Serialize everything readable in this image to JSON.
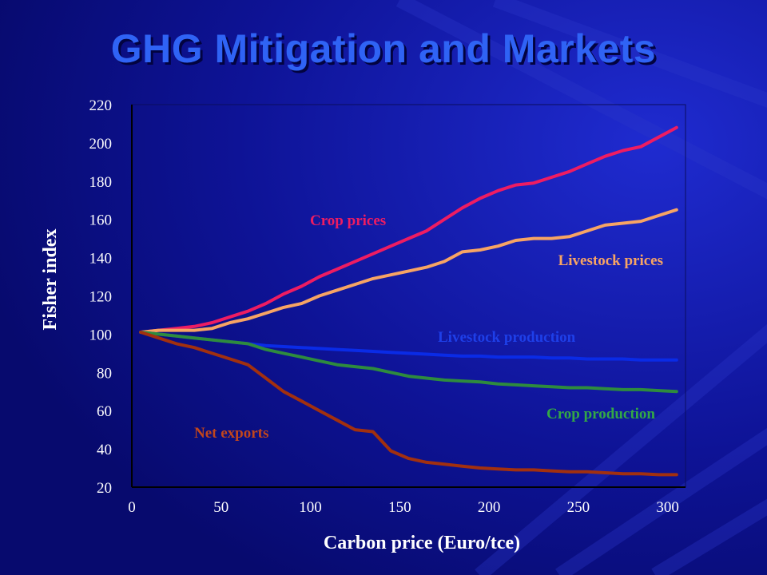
{
  "slide": {
    "title": "GHG Mitigation and Markets",
    "background_color": "#0b0f8a",
    "title_color": "#2f63f5"
  },
  "chart_data": {
    "type": "line",
    "title": "",
    "xlabel": "Carbon price (Euro/tce)",
    "ylabel": "Fisher index",
    "xlim": [
      0,
      310
    ],
    "ylim": [
      20,
      220
    ],
    "xticks": [
      "0",
      "50",
      "100",
      "150",
      "200",
      "250",
      "300"
    ],
    "yticks": [
      "20",
      "40",
      "60",
      "80",
      "100",
      "120",
      "140",
      "160",
      "180",
      "200",
      "220"
    ],
    "grid": false,
    "x": [
      5,
      15,
      25,
      35,
      45,
      55,
      65,
      75,
      85,
      95,
      105,
      115,
      125,
      135,
      145,
      155,
      165,
      175,
      185,
      195,
      205,
      215,
      225,
      235,
      245,
      255,
      265,
      275,
      285,
      295,
      305
    ],
    "series": [
      {
        "name": "Crop prices",
        "color": "#ee1c62",
        "label_color": "#ee1c62",
        "values": [
          101,
          102,
          103,
          104,
          106,
          109,
          112,
          116,
          121,
          125,
          130,
          134,
          138,
          142,
          146,
          150,
          154,
          160,
          166,
          171,
          175,
          178,
          179,
          182,
          185,
          189,
          193,
          196,
          198,
          203,
          208
        ]
      },
      {
        "name": "Livestock prices",
        "color": "#f7a464",
        "label_color": "#f7a464",
        "values": [
          101,
          102,
          102,
          102,
          103,
          106,
          108,
          111,
          114,
          116,
          120,
          123,
          126,
          129,
          131,
          133,
          135,
          138,
          143,
          144,
          146,
          149,
          150,
          150,
          151,
          154,
          157,
          158,
          159,
          162,
          165
        ]
      },
      {
        "name": "Livestock production",
        "color": "#0a2be6",
        "label_color": "#1e3fe8",
        "values": [
          101,
          100,
          99,
          98,
          97,
          96,
          95,
          94,
          93.5,
          93,
          92.5,
          92,
          91.5,
          91,
          90.5,
          90,
          89.5,
          89,
          88.5,
          88.5,
          88,
          88,
          88,
          87.5,
          87.5,
          87,
          87,
          87,
          86.5,
          86.5,
          86.5
        ]
      },
      {
        "name": "Crop production",
        "color": "#2e8b3e",
        "label_color": "#33a846",
        "values": [
          101,
          100,
          99,
          98,
          97,
          96,
          95,
          92,
          90,
          88,
          86,
          84,
          83,
          82,
          80,
          78,
          77,
          76,
          75.5,
          75,
          74,
          73.5,
          73,
          72.5,
          72,
          72,
          71.5,
          71,
          71,
          70.5,
          70
        ]
      },
      {
        "name": "Net exports",
        "color": "#a2300f",
        "label_color": "#c2461c",
        "values": [
          101,
          98,
          95,
          93,
          90,
          87,
          84,
          77,
          70,
          65,
          60,
          55,
          50,
          49,
          39,
          35,
          33,
          32,
          31,
          30,
          29.5,
          29,
          29,
          28.5,
          28,
          28,
          27.5,
          27,
          27,
          26.5,
          26.5
        ]
      }
    ]
  }
}
